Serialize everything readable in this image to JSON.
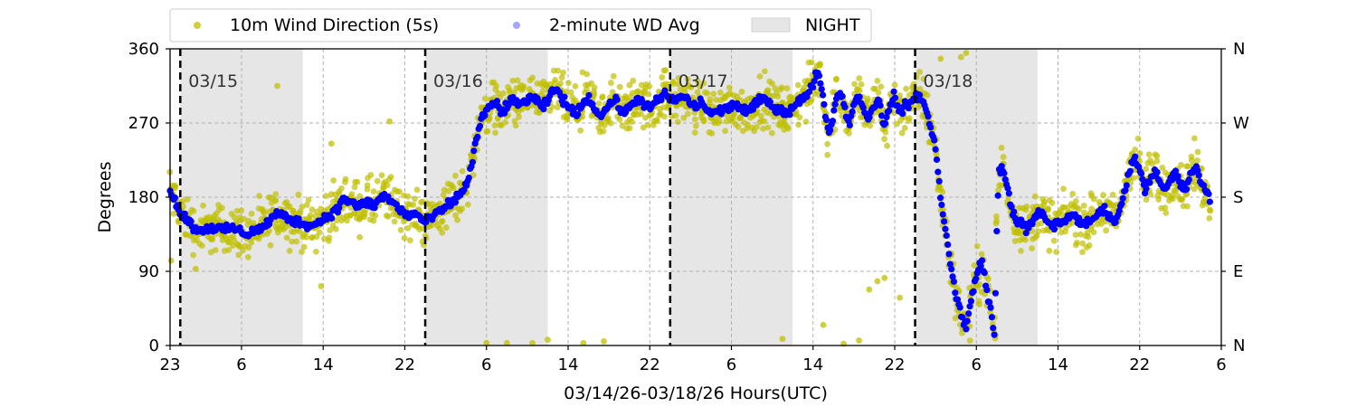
{
  "chart_data": {
    "type": "scatter",
    "xlabel": "03/14/26-03/18/26  Hours(UTC)",
    "ylabel": "Degrees",
    "x_unit": "hours since 03/14/26 23:00 UTC",
    "xlim": [
      0,
      103
    ],
    "ylim": [
      0,
      360
    ],
    "x_ticks": [
      {
        "x": 0,
        "label": "23"
      },
      {
        "x": 7,
        "label": "6"
      },
      {
        "x": 15,
        "label": "14"
      },
      {
        "x": 23,
        "label": "22"
      },
      {
        "x": 31,
        "label": "6"
      },
      {
        "x": 39,
        "label": "14"
      },
      {
        "x": 47,
        "label": "22"
      },
      {
        "x": 55,
        "label": "6"
      },
      {
        "x": 63,
        "label": "14"
      },
      {
        "x": 71,
        "label": "22"
      },
      {
        "x": 79,
        "label": "6"
      },
      {
        "x": 87,
        "label": "14"
      },
      {
        "x": 95,
        "label": "22"
      },
      {
        "x": 103,
        "label": "6"
      }
    ],
    "y_ticks": [
      0,
      90,
      180,
      270,
      360
    ],
    "y_ticks_right": [
      "N",
      "E",
      "S",
      "W",
      "N"
    ],
    "grid": true,
    "legend_position": "above plot, left",
    "legend": [
      {
        "label": "10m Wind Direction (5s)",
        "kind": "marker",
        "color": "#bfbf00"
      },
      {
        "label": "2-minute WD Avg",
        "kind": "marker",
        "color": "#0000ff"
      },
      {
        "label": "NIGHT",
        "kind": "patch",
        "color": "#e6e6e6"
      }
    ],
    "day_markers": [
      {
        "x": 1,
        "label": "03/15"
      },
      {
        "x": 25,
        "label": "03/16"
      },
      {
        "x": 49,
        "label": "03/17"
      },
      {
        "x": 73,
        "label": "03/18"
      }
    ],
    "night_spans": [
      [
        1,
        13
      ],
      [
        25,
        37
      ],
      [
        49,
        61
      ],
      [
        73,
        85
      ]
    ],
    "series": [
      {
        "name": "10m Wind Direction (5s)",
        "color": "#bfbf00",
        "spread": 28,
        "outliers": [
          [
            10.5,
            315
          ],
          [
            15.8,
            245
          ],
          [
            21.5,
            272
          ],
          [
            0.1,
            103
          ],
          [
            2.5,
            93
          ],
          [
            14.8,
            72
          ],
          [
            31,
            3
          ],
          [
            33,
            3
          ],
          [
            35.5,
            3
          ],
          [
            37,
            7
          ],
          [
            40.5,
            3
          ],
          [
            42.5,
            5
          ],
          [
            60,
            8
          ],
          [
            64,
            25
          ],
          [
            68.5,
            68
          ],
          [
            69.3,
            78
          ],
          [
            70,
            82
          ],
          [
            71.5,
            58
          ],
          [
            66,
            2
          ],
          [
            67.5,
            6
          ],
          [
            75.5,
            348
          ],
          [
            77.5,
            350
          ],
          [
            78,
            355
          ],
          [
            79.3,
            50
          ],
          [
            79.5,
            65
          ]
        ]
      },
      {
        "name": "2-minute WD Avg",
        "color": "#0000ff",
        "points": [
          [
            0,
            188
          ],
          [
            0.5,
            175
          ],
          [
            1,
            162
          ],
          [
            1.5,
            155
          ],
          [
            2,
            148
          ],
          [
            2.5,
            141
          ],
          [
            3,
            140
          ],
          [
            3.5,
            142
          ],
          [
            4,
            143
          ],
          [
            4.5,
            142
          ],
          [
            5,
            141
          ],
          [
            5.5,
            140
          ],
          [
            6,
            144
          ],
          [
            6.5,
            140
          ],
          [
            7,
            138
          ],
          [
            7.5,
            135
          ],
          [
            8,
            138
          ],
          [
            9,
            142
          ],
          [
            9.5,
            148
          ],
          [
            10,
            155
          ],
          [
            10.5,
            160
          ],
          [
            11,
            158
          ],
          [
            11.5,
            155
          ],
          [
            12,
            152
          ],
          [
            12.5,
            150
          ],
          [
            13,
            148
          ],
          [
            13.5,
            147
          ],
          [
            14,
            145
          ],
          [
            14.5,
            150
          ],
          [
            15,
            153
          ],
          [
            15.5,
            158
          ],
          [
            16,
            162
          ],
          [
            16.5,
            166
          ],
          [
            17,
            180
          ],
          [
            17.5,
            175
          ],
          [
            18,
            172
          ],
          [
            18.5,
            168
          ],
          [
            19,
            172
          ],
          [
            19.5,
            174
          ],
          [
            20,
            168
          ],
          [
            20.5,
            178
          ],
          [
            21,
            182
          ],
          [
            21.5,
            176
          ],
          [
            22,
            172
          ],
          [
            22.5,
            165
          ],
          [
            23,
            160
          ],
          [
            23.5,
            158
          ],
          [
            24,
            160
          ],
          [
            24.5,
            155
          ],
          [
            25,
            150
          ],
          [
            25.5,
            153
          ],
          [
            26,
            160
          ],
          [
            26.5,
            162
          ],
          [
            27,
            168
          ],
          [
            27.5,
            172
          ],
          [
            28,
            178
          ],
          [
            28.5,
            185
          ],
          [
            29,
            195
          ],
          [
            29.5,
            215
          ],
          [
            30,
            250
          ],
          [
            30.5,
            275
          ],
          [
            31,
            285
          ],
          [
            31.5,
            290
          ],
          [
            32,
            295
          ],
          [
            32.5,
            280
          ],
          [
            33,
            292
          ],
          [
            33.5,
            300
          ],
          [
            34,
            290
          ],
          [
            34.5,
            295
          ],
          [
            35,
            298
          ],
          [
            35.5,
            302
          ],
          [
            36,
            295
          ],
          [
            36.5,
            288
          ],
          [
            37,
            298
          ],
          [
            37.5,
            308
          ],
          [
            38,
            310
          ],
          [
            38.5,
            298
          ],
          [
            39,
            290
          ],
          [
            39.5,
            282
          ],
          [
            40,
            285
          ],
          [
            40.5,
            295
          ],
          [
            41,
            300
          ],
          [
            41.5,
            292
          ],
          [
            42,
            278
          ],
          [
            42.5,
            283
          ],
          [
            43,
            292
          ],
          [
            43.5,
            298
          ],
          [
            44,
            290
          ],
          [
            44.5,
            283
          ],
          [
            45,
            288
          ],
          [
            45.5,
            296
          ],
          [
            46,
            300
          ],
          [
            46.5,
            292
          ],
          [
            47,
            288
          ],
          [
            47.5,
            293
          ],
          [
            48,
            300
          ],
          [
            48.5,
            305
          ],
          [
            49,
            300
          ],
          [
            49.5,
            296
          ],
          [
            50,
            303
          ],
          [
            50.5,
            300
          ],
          [
            51,
            294
          ],
          [
            51.5,
            290
          ],
          [
            52,
            295
          ],
          [
            52.5,
            288
          ],
          [
            53,
            282
          ],
          [
            53.5,
            283
          ],
          [
            54,
            285
          ],
          [
            54.5,
            288
          ],
          [
            55,
            290
          ],
          [
            55.5,
            293
          ],
          [
            56,
            287
          ],
          [
            56.5,
            283
          ],
          [
            57,
            288
          ],
          [
            57.5,
            294
          ],
          [
            58,
            300
          ],
          [
            58.5,
            296
          ],
          [
            59,
            290
          ],
          [
            59.5,
            288
          ],
          [
            60,
            284
          ],
          [
            60.5,
            283
          ],
          [
            61,
            290
          ],
          [
            61.5,
            295
          ],
          [
            62,
            300
          ],
          [
            62.5,
            303
          ],
          [
            63,
            318
          ],
          [
            63.5,
            335
          ],
          [
            64,
            300
          ],
          [
            64.5,
            255
          ],
          [
            65,
            282
          ],
          [
            65.5,
            310
          ],
          [
            66,
            295
          ],
          [
            66.5,
            268
          ],
          [
            67,
            292
          ],
          [
            67.5,
            305
          ],
          [
            68,
            285
          ],
          [
            68.5,
            275
          ],
          [
            69,
            292
          ],
          [
            69.5,
            300
          ],
          [
            70,
            262
          ],
          [
            70.5,
            290
          ],
          [
            71,
            305
          ],
          [
            71.5,
            280
          ],
          [
            72,
            290
          ],
          [
            72.5,
            295
          ],
          [
            73,
            300
          ],
          [
            73.5,
            305
          ],
          [
            74,
            288
          ],
          [
            74.5,
            265
          ],
          [
            75,
            240
          ],
          [
            75.5,
            180
          ],
          [
            76,
            140
          ],
          [
            76.5,
            95
          ],
          [
            77,
            60
          ],
          [
            77.5,
            40
          ],
          [
            78,
            20
          ],
          [
            78.5,
            55
          ],
          [
            79,
            85
          ],
          [
            79.5,
            105
          ],
          [
            80,
            70
          ],
          [
            80.5,
            35
          ],
          [
            80.8,
            10
          ],
          [
            81,
            140
          ],
          [
            81.2,
            210
          ],
          [
            81.5,
            215
          ],
          [
            82,
            195
          ],
          [
            82.5,
            165
          ],
          [
            83,
            150
          ],
          [
            83.5,
            148
          ],
          [
            84,
            140
          ],
          [
            84.5,
            150
          ],
          [
            85,
            160
          ],
          [
            85.5,
            158
          ],
          [
            86,
            150
          ],
          [
            86.5,
            145
          ],
          [
            87,
            148
          ],
          [
            87.5,
            150
          ],
          [
            88,
            155
          ],
          [
            88.5,
            162
          ],
          [
            89,
            150
          ],
          [
            89.5,
            145
          ],
          [
            90,
            150
          ],
          [
            90.5,
            155
          ],
          [
            91,
            160
          ],
          [
            91.5,
            165
          ],
          [
            92,
            160
          ],
          [
            92.5,
            150
          ],
          [
            93,
            160
          ],
          [
            93.5,
            188
          ],
          [
            94,
            210
          ],
          [
            94.5,
            230
          ],
          [
            95,
            215
          ],
          [
            95.5,
            190
          ],
          [
            96,
            200
          ],
          [
            96.5,
            215
          ],
          [
            97,
            195
          ],
          [
            97.5,
            188
          ],
          [
            98,
            200
          ],
          [
            98.5,
            210
          ],
          [
            99,
            195
          ],
          [
            99.5,
            188
          ],
          [
            100,
            210
          ],
          [
            100.5,
            215
          ],
          [
            101,
            200
          ],
          [
            101.5,
            185
          ],
          [
            102,
            175
          ],
          [
            102.5,
            165
          ],
          [
            103,
            155
          ]
        ]
      }
    ]
  }
}
